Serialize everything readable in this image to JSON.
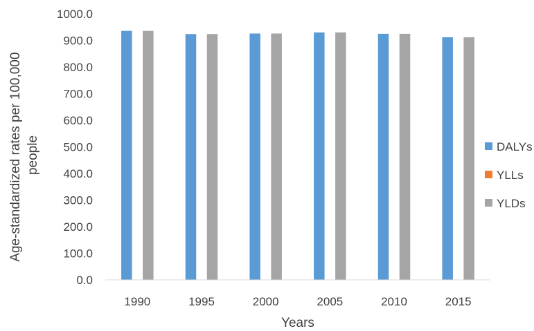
{
  "chart_data": {
    "type": "bar",
    "title": "",
    "xlabel": "Years",
    "ylabel_lines": [
      "Age-standardized rates per 100,000",
      "people"
    ],
    "categories": [
      "1990",
      "1995",
      "2000",
      "2005",
      "2010",
      "2015"
    ],
    "series": [
      {
        "name": "DALYs",
        "color": "#5b9bd5",
        "values": [
          936,
          924,
          926,
          930,
          925,
          912
        ]
      },
      {
        "name": "YLLs",
        "color": "#ed7d31",
        "values": [
          0,
          0,
          0,
          0,
          0,
          0
        ]
      },
      {
        "name": "YLDs",
        "color": "#a5a5a5",
        "values": [
          936,
          924,
          926,
          930,
          925,
          912
        ]
      }
    ],
    "ylim": [
      0,
      1000
    ],
    "yticks": [
      "0.0",
      "100.0",
      "200.0",
      "300.0",
      "400.0",
      "500.0",
      "600.0",
      "700.0",
      "800.0",
      "900.0",
      "1000.0"
    ],
    "grid": false,
    "legend_position": "right"
  }
}
